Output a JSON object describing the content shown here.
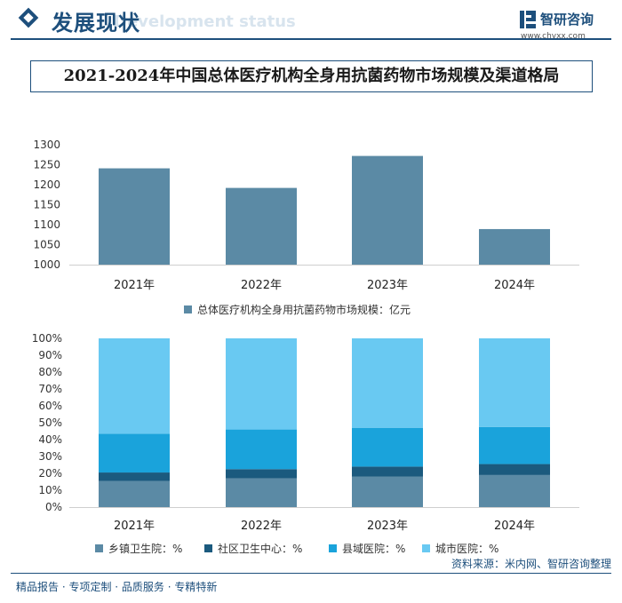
{
  "header": {
    "title": "发展现状",
    "subtitle": "Development status",
    "brand_name": "智研咨询",
    "brand_url": "www.chyxx.com"
  },
  "main_title": "2021-2024年中国总体医疗机构全身用抗菌药物市场规模及渠道格局",
  "chart_data": [
    {
      "type": "bar",
      "title": "",
      "categories": [
        "2021年",
        "2022年",
        "2023年",
        "2024年"
      ],
      "series": [
        {
          "name": "总体医疗机构全身用抗菌药物市场规模：亿元",
          "values": [
            1241,
            1192,
            1272,
            1089
          ],
          "color": "#5b8aa5"
        }
      ],
      "ylim": [
        1000,
        1300
      ],
      "yticks": [
        1000,
        1050,
        1100,
        1150,
        1200,
        1250,
        1300
      ],
      "xlabel": "",
      "ylabel": "",
      "grid": false,
      "legend_position": "bottom-center"
    },
    {
      "type": "bar",
      "stacked": true,
      "percent": true,
      "title": "",
      "categories": [
        "2021年",
        "2022年",
        "2023年",
        "2024年"
      ],
      "series": [
        {
          "name": "乡镇卫生院：%",
          "values": [
            15.5,
            17.0,
            18.0,
            19.0
          ],
          "color": "#5b8aa5"
        },
        {
          "name": "社区卫生中心：%",
          "values": [
            5.0,
            5.5,
            6.0,
            6.5
          ],
          "color": "#1b5a7e"
        },
        {
          "name": "县域医院：%",
          "values": [
            23.0,
            23.5,
            23.0,
            22.0
          ],
          "color": "#1aa3db"
        },
        {
          "name": "城市医院：%",
          "values": [
            56.5,
            54.0,
            53.0,
            52.5
          ],
          "color": "#69c9f2"
        }
      ],
      "ylim": [
        0,
        100
      ],
      "yticks": [
        "0%",
        "10%",
        "20%",
        "30%",
        "40%",
        "50%",
        "60%",
        "70%",
        "80%",
        "90%",
        "100%"
      ],
      "xlabel": "",
      "ylabel": "",
      "grid": false,
      "legend_position": "bottom-center"
    }
  ],
  "footer": {
    "source": "资料来源：米内网、智研咨询整理",
    "tagline": "精品报告 · 专项定制 · 品质服务 · 专精特新"
  }
}
